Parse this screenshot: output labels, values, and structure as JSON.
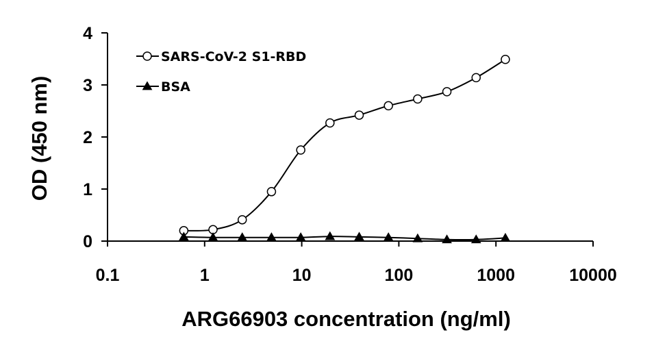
{
  "chart_data": {
    "type": "line",
    "title": "",
    "xlabel": "ARG66903 concentration (ng/ml)",
    "ylabel": "OD (450 nm)",
    "x_scale": "log",
    "xlim": [
      0.1,
      10000
    ],
    "ylim": [
      0,
      4
    ],
    "x_ticks": [
      "0.1",
      "1",
      "10",
      "100",
      "1000",
      "10000"
    ],
    "y_ticks": [
      "0",
      "1",
      "2",
      "3",
      "4"
    ],
    "grid": false,
    "legend_position": "top-left",
    "x": [
      0.61,
      1.22,
      2.44,
      4.88,
      9.77,
      19.53,
      39.06,
      78.13,
      156.25,
      312.5,
      625,
      1250
    ],
    "series": [
      {
        "name": "SARS-CoV-2 S1-RBD",
        "marker": "open-circle",
        "color": "#000000",
        "values": [
          0.2,
          0.22,
          0.41,
          0.95,
          1.75,
          2.27,
          2.42,
          2.6,
          2.73,
          2.87,
          3.14,
          3.49
        ]
      },
      {
        "name": "BSA",
        "marker": "filled-triangle",
        "color": "#000000",
        "values": [
          0.08,
          0.07,
          0.07,
          0.07,
          0.07,
          0.09,
          0.08,
          0.07,
          0.05,
          0.03,
          0.03,
          0.06
        ]
      }
    ]
  }
}
